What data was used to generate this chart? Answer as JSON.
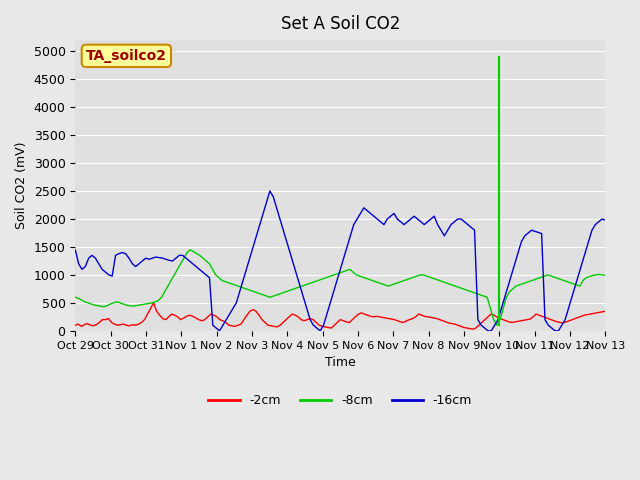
{
  "title": "Set A Soil CO2",
  "xlabel": "Time",
  "ylabel": "Soil CO2 (mV)",
  "ylim": [
    0,
    5200
  ],
  "yticks": [
    0,
    500,
    1000,
    1500,
    2000,
    2500,
    3000,
    3500,
    4000,
    4500,
    5000
  ],
  "color_2cm": "#ff0000",
  "color_8cm": "#00cc00",
  "color_16cm": "#0000cc",
  "bg_color": "#e8e8e8",
  "plot_bg": "#e0e0e0",
  "legend_labels": [
    "-2cm",
    "-8cm",
    "-16cm"
  ],
  "box_label": "TA_soilco2",
  "box_bg": "#ffff99",
  "box_border": "#cc8800",
  "box_text_color": "#990000",
  "xtick_labels": [
    "Oct 29",
    "Oct 30",
    "Oct 31",
    "Nov 1",
    "Nov 2",
    "Nov 3",
    "Nov 4",
    "Nov 5",
    "Nov 6",
    "Nov 7",
    "Nov 8",
    "Nov 9",
    "Nov 10",
    "Nov 11",
    "Nov 12",
    "Nov 13"
  ],
  "n_days": 15,
  "series_2cm": [
    100,
    120,
    80,
    110,
    130,
    100,
    90,
    110,
    150,
    200,
    200,
    220,
    150,
    120,
    100,
    110,
    120,
    100,
    90,
    110,
    100,
    120,
    150,
    200,
    300,
    400,
    500,
    350,
    280,
    220,
    200,
    250,
    300,
    280,
    250,
    200,
    230,
    260,
    280,
    260,
    230,
    200,
    180,
    200,
    250,
    300,
    280,
    250,
    200,
    180,
    150,
    100,
    90,
    80,
    100,
    120,
    200,
    280,
    350,
    380,
    350,
    280,
    200,
    150,
    100,
    90,
    80,
    70,
    100,
    150,
    200,
    250,
    300,
    280,
    250,
    200,
    180,
    200,
    220,
    200,
    150,
    100,
    80,
    70,
    60,
    50,
    100,
    150,
    200,
    180,
    160,
    150,
    200,
    250,
    300,
    320,
    300,
    280,
    260,
    250,
    260,
    250,
    240,
    230,
    220,
    210,
    200,
    180,
    160,
    150,
    180,
    200,
    220,
    250,
    300,
    280,
    260,
    250,
    240,
    230,
    220,
    200,
    180,
    160,
    140,
    130,
    120,
    100,
    80,
    60,
    50,
    40,
    30,
    50,
    100,
    150,
    200,
    250,
    300,
    280,
    250,
    220,
    200,
    180,
    160,
    150,
    160,
    170,
    180,
    190,
    200,
    210,
    250,
    300,
    280,
    260,
    240,
    220,
    200,
    180,
    160,
    150,
    140,
    160,
    180,
    200,
    220,
    240,
    260,
    280,
    290,
    300,
    310,
    320,
    330,
    340,
    350
  ],
  "series_8cm": [
    600,
    580,
    550,
    520,
    500,
    480,
    460,
    450,
    440,
    430,
    450,
    480,
    500,
    520,
    500,
    480,
    460,
    450,
    440,
    450,
    460,
    470,
    480,
    490,
    500,
    520,
    540,
    600,
    700,
    800,
    900,
    1000,
    1100,
    1200,
    1300,
    1400,
    1450,
    1420,
    1380,
    1350,
    1300,
    1250,
    1200,
    1100,
    1000,
    950,
    900,
    880,
    860,
    840,
    820,
    800,
    780,
    760,
    740,
    720,
    700,
    680,
    660,
    640,
    620,
    600,
    620,
    640,
    660,
    680,
    700,
    720,
    740,
    760,
    780,
    800,
    820,
    840,
    860,
    880,
    900,
    920,
    940,
    960,
    980,
    1000,
    1020,
    1040,
    1060,
    1080,
    1100,
    1050,
    1000,
    980,
    960,
    940,
    920,
    900,
    880,
    860,
    840,
    820,
    800,
    820,
    840,
    860,
    880,
    900,
    920,
    940,
    960,
    980,
    1000,
    1000,
    980,
    960,
    940,
    920,
    900,
    880,
    860,
    840,
    820,
    800,
    780,
    760,
    740,
    720,
    700,
    680,
    660,
    640,
    620,
    600,
    400,
    200,
    100,
    200,
    400,
    600,
    700,
    750,
    800,
    820,
    840,
    860,
    880,
    900,
    920,
    940,
    960,
    980,
    1000,
    980,
    960,
    940,
    920,
    900,
    880,
    860,
    840,
    820,
    800,
    900,
    950,
    970,
    990,
    1000,
    1010,
    1000,
    990
  ],
  "series_16cm": [
    1450,
    1200,
    1100,
    1150,
    1300,
    1350,
    1300,
    1200,
    1100,
    1050,
    1000,
    980,
    1350,
    1380,
    1400,
    1380,
    1300,
    1200,
    1150,
    1200,
    1250,
    1300,
    1280,
    1300,
    1320,
    1310,
    1300,
    1280,
    1260,
    1250,
    1300,
    1350,
    1350,
    1300,
    1250,
    1200,
    1150,
    1100,
    1050,
    1000,
    950,
    100,
    50,
    0,
    100,
    200,
    300,
    400,
    500,
    700,
    900,
    1100,
    1300,
    1500,
    1700,
    1900,
    2100,
    2300,
    2500,
    2400,
    2200,
    2000,
    1800,
    1600,
    1400,
    1200,
    1000,
    800,
    600,
    400,
    200,
    100,
    50,
    0,
    100,
    300,
    500,
    700,
    900,
    1100,
    1300,
    1500,
    1700,
    1900,
    2000,
    2100,
    2200,
    2150,
    2100,
    2050,
    2000,
    1950,
    1900,
    2000,
    2050,
    2100,
    2000,
    1950,
    1900,
    1950,
    2000,
    2050,
    2000,
    1950,
    1900,
    1950,
    2000,
    2050,
    1900,
    1800,
    1700,
    1800,
    1900,
    1950,
    2000,
    2000,
    1950,
    1900,
    1850,
    1800,
    200,
    100,
    50,
    0,
    0,
    100,
    200,
    400,
    600,
    800,
    1000,
    1200,
    1400,
    1600,
    1700,
    1750,
    1800,
    1780,
    1760,
    1740,
    200,
    100,
    50,
    0,
    0,
    100,
    200,
    400,
    600,
    800,
    1000,
    1200,
    1400,
    1600,
    1800,
    1900,
    1950,
    2000,
    1980
  ]
}
